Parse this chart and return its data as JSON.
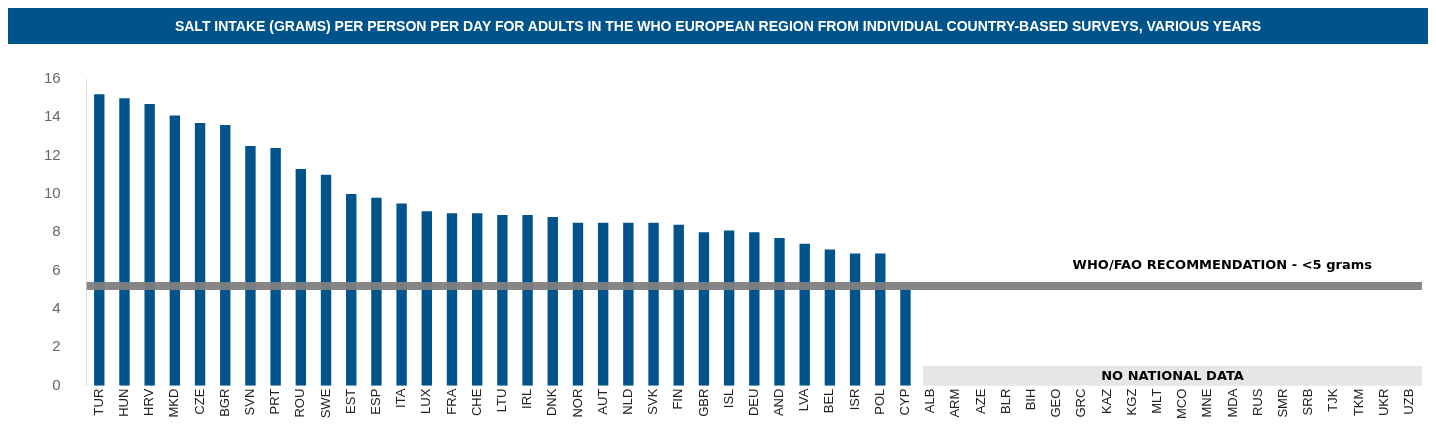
{
  "chart_data": {
    "type": "bar",
    "title": "SALT INTAKE (GRAMS) PER PERSON PER DAY FOR ADULTS IN THE WHO EUROPEAN REGION FROM INDIVIDUAL COUNTRY-BASED SURVEYS, VARIOUS YEARS",
    "categories": [
      "TUR",
      "HUN",
      "HRV",
      "MKD",
      "CZE",
      "BGR",
      "SVN",
      "PRT",
      "ROU",
      "SWE",
      "EST",
      "ESP",
      "ITA",
      "LUX",
      "FRA",
      "CHE",
      "LTU",
      "IRL",
      "DNK",
      "NOR",
      "AUT",
      "NLD",
      "SVK",
      "FIN",
      "GBR",
      "ISL",
      "DEU",
      "AND",
      "LVA",
      "BEL",
      "ISR",
      "POL",
      "CYP",
      "ALB",
      "ARM",
      "AZE",
      "BLR",
      "BIH",
      "GEO",
      "GRC",
      "KAZ",
      "KGZ",
      "MLT",
      "MCO",
      "MNE",
      "MDA",
      "RUS",
      "SMR",
      "SRB",
      "TJK",
      "TKM",
      "UKR",
      "UZB"
    ],
    "values": [
      15.2,
      15.0,
      14.7,
      14.1,
      13.7,
      13.6,
      12.5,
      12.4,
      11.3,
      11.0,
      10.0,
      9.8,
      9.5,
      9.1,
      9.0,
      9.0,
      8.9,
      8.9,
      8.8,
      8.5,
      8.5,
      8.5,
      8.5,
      8.4,
      8.0,
      8.1,
      8.0,
      7.7,
      7.4,
      7.1,
      6.9,
      6.9,
      5.0,
      null,
      null,
      null,
      null,
      null,
      null,
      null,
      null,
      null,
      null,
      null,
      null,
      null,
      null,
      null,
      null,
      null,
      null,
      null,
      null
    ],
    "color": "#00538b",
    "ylim": [
      0,
      16
    ],
    "yticks": [
      0,
      2,
      4,
      6,
      8,
      10,
      12,
      14,
      16
    ],
    "grid": false,
    "ref_lines": [
      {
        "axis": "y",
        "value": 5.2,
        "label": "WHO/FAO RECOMMENDATION - <5 grams",
        "color": "#808080"
      }
    ],
    "bands": [
      {
        "axis": "x",
        "from": "ALB",
        "to": "UZB",
        "label": "NO NATIONAL DATA",
        "color": "#e6e6e6"
      }
    ]
  }
}
